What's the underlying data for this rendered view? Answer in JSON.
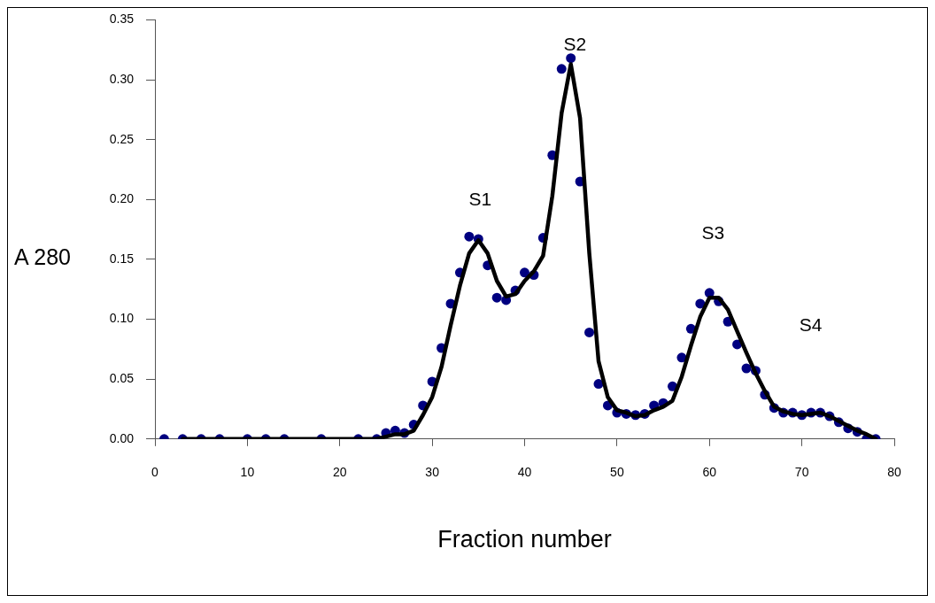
{
  "chart_data": {
    "type": "scatter",
    "xlabel": "Fraction number",
    "ylabel": "A 280",
    "xlim": [
      0,
      80
    ],
    "xticks": [
      0,
      10,
      20,
      30,
      40,
      50,
      60,
      70,
      80
    ],
    "ylim": [
      0,
      0.35
    ],
    "yticks": [
      {
        "value": 0,
        "label": "0.00"
      },
      {
        "value": 0.05,
        "label": "0.05"
      },
      {
        "value": 0.1,
        "label": "0.10"
      },
      {
        "value": 0.15,
        "label": "0.15"
      },
      {
        "value": 0.2,
        "label": "0.20"
      },
      {
        "value": 0.25,
        "label": "0.25"
      },
      {
        "value": 0.3,
        "label": "0.30"
      },
      {
        "value": 0.35,
        "label": "0.35"
      }
    ],
    "grid": false,
    "legend": false,
    "series": [
      {
        "type": "scatter",
        "color": "#000080",
        "marker": "circle",
        "x": [
          1,
          3,
          5,
          7,
          10,
          12,
          14,
          18,
          22,
          24,
          25,
          26,
          27,
          28,
          29,
          30,
          31,
          32,
          33,
          34,
          35,
          36,
          37,
          38,
          39,
          40,
          41,
          42,
          43,
          44,
          45,
          46,
          47,
          48,
          49,
          50,
          51,
          52,
          53,
          54,
          55,
          56,
          57,
          58,
          59,
          60,
          61,
          62,
          63,
          64,
          65,
          66,
          67,
          68,
          69,
          70,
          71,
          72,
          73,
          74,
          75,
          76,
          77,
          78
        ],
        "values": [
          0,
          0,
          0,
          0,
          0,
          0,
          0,
          0,
          0,
          0,
          0.005,
          0.007,
          0.005,
          0.012,
          0.028,
          0.048,
          0.076,
          0.113,
          0.139,
          0.169,
          0.167,
          0.145,
          0.118,
          0.116,
          0.124,
          0.139,
          0.137,
          0.168,
          0.237,
          0.309,
          0.318,
          0.215,
          0.089,
          0.046,
          0.028,
          0.022,
          0.021,
          0.02,
          0.021,
          0.028,
          0.03,
          0.044,
          0.068,
          0.092,
          0.113,
          0.122,
          0.115,
          0.098,
          0.079,
          0.059,
          0.057,
          0.037,
          0.026,
          0.022,
          0.022,
          0.02,
          0.022,
          0.022,
          0.019,
          0.014,
          0.009,
          0.006,
          0,
          0
        ]
      },
      {
        "type": "line",
        "color": "#000000",
        "marker": "none",
        "line_style": "solid",
        "x": [
          3,
          24,
          25,
          26,
          27,
          28,
          29,
          30,
          31,
          32,
          33,
          34,
          35,
          36,
          37,
          38,
          39,
          40,
          41,
          42,
          43,
          44,
          45,
          46,
          47,
          48,
          49,
          50,
          51,
          52,
          53,
          54,
          55,
          56,
          57,
          58,
          59,
          60,
          61,
          62,
          63,
          64,
          65,
          66,
          67,
          68,
          69,
          70,
          71,
          72,
          73,
          74,
          75,
          76,
          77,
          78
        ],
        "values": [
          0,
          0,
          0.002,
          0.004,
          0.004,
          0.007,
          0.02,
          0.035,
          0.06,
          0.095,
          0.128,
          0.155,
          0.166,
          0.155,
          0.132,
          0.119,
          0.121,
          0.132,
          0.14,
          0.153,
          0.203,
          0.272,
          0.313,
          0.268,
          0.155,
          0.065,
          0.035,
          0.024,
          0.022,
          0.019,
          0.02,
          0.024,
          0.027,
          0.032,
          0.052,
          0.078,
          0.102,
          0.118,
          0.118,
          0.108,
          0.09,
          0.072,
          0.055,
          0.04,
          0.027,
          0.023,
          0.021,
          0.02,
          0.021,
          0.022,
          0.019,
          0.015,
          0.011,
          0.007,
          0.004,
          0
        ]
      }
    ],
    "annotations": [
      "S1",
      "S2",
      "S3",
      "S4"
    ]
  }
}
